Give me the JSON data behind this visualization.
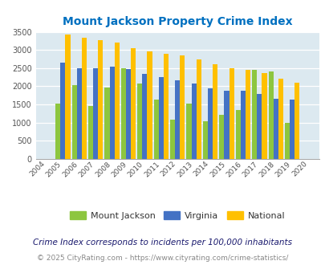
{
  "title": "Mount Jackson Property Crime Index",
  "years": [
    "2004",
    "2005",
    "2006",
    "2007",
    "2008",
    "2009",
    "2010",
    "2011",
    "2012",
    "2013",
    "2014",
    "2015",
    "2016",
    "2017",
    "2018",
    "2019",
    "2020"
  ],
  "mount_jackson": [
    0,
    1530,
    2030,
    1450,
    1970,
    2500,
    2080,
    1630,
    1080,
    1530,
    1040,
    1220,
    1350,
    2460,
    2410,
    990,
    0
  ],
  "virginia": [
    0,
    2650,
    2500,
    2500,
    2540,
    2470,
    2340,
    2260,
    2170,
    2080,
    1950,
    1880,
    1870,
    1800,
    1650,
    1630,
    0
  ],
  "national": [
    0,
    3420,
    3340,
    3270,
    3210,
    3040,
    2950,
    2900,
    2860,
    2730,
    2600,
    2490,
    2460,
    2360,
    2200,
    2110,
    0
  ],
  "mount_jackson_color": "#8DC63F",
  "virginia_color": "#4472C4",
  "national_color": "#FFC000",
  "bg_color": "#DCE9F0",
  "title_color": "#0070C0",
  "subtitle": "Crime Index corresponds to incidents per 100,000 inhabitants",
  "footer": "© 2025 CityRating.com - https://www.cityrating.com/crime-statistics/",
  "subtitle_color": "#1a1a6e",
  "footer_color": "#888888",
  "ylim": [
    0,
    3500
  ],
  "yticks": [
    0,
    500,
    1000,
    1500,
    2000,
    2500,
    3000,
    3500
  ]
}
